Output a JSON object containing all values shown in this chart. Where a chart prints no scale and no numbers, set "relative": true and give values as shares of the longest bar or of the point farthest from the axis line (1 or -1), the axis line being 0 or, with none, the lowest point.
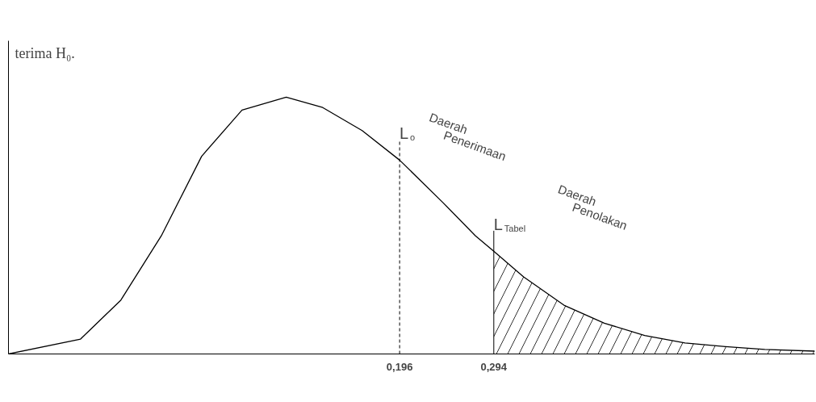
{
  "chart_data": {
    "type": "line",
    "relative": true,
    "tick_labels": "x",
    "grid": false,
    "marker": "none",
    "line_style": "solid",
    "x": [
      -0.211,
      -0.136,
      -0.094,
      -0.052,
      -0.01,
      0.032,
      0.078,
      0.116,
      0.157,
      0.196,
      0.241,
      0.275,
      0.294,
      0.325,
      0.367,
      0.409,
      0.451,
      0.493,
      0.535,
      0.576,
      0.628
    ],
    "series": [
      {
        "color": "#000000",
        "values": [
          0,
          0.058,
          0.21,
          0.46,
          0.77,
          0.95,
          1,
          0.96,
          0.87,
          0.755,
          0.59,
          0.46,
          0.4,
          0.3,
          0.19,
          0.12,
          0.072,
          0.043,
          0.029,
          0.018,
          0.011
        ]
      },
      {
        "type": "area",
        "color": "#000000",
        "x": [
          0.294,
          0.325,
          0.367,
          0.409,
          0.451,
          0.493,
          0.535,
          0.576,
          0.628
        ],
        "values": [
          0.4,
          0.3,
          0.19,
          0.12,
          0.072,
          0.043,
          0.029,
          0.018,
          0.011
        ]
      }
    ],
    "xlim": [
      -0.211,
      0.628
    ],
    "xticks": [
      {
        "value": 0.196,
        "label": "0,196"
      },
      {
        "value": 0.294,
        "label": "0,294"
      }
    ],
    "ref_lines": [
      {
        "axis": "x",
        "value": 0.196,
        "label": "L$_{o}$",
        "line_style": "dashed"
      },
      {
        "axis": "x",
        "value": 0.294,
        "label": "L$_{Tabel}$",
        "line_style": "solid"
      }
    ],
    "annotations": [
      "terima H₀.",
      "Daerah Penerimaan",
      "Daerah Penolakan"
    ]
  }
}
